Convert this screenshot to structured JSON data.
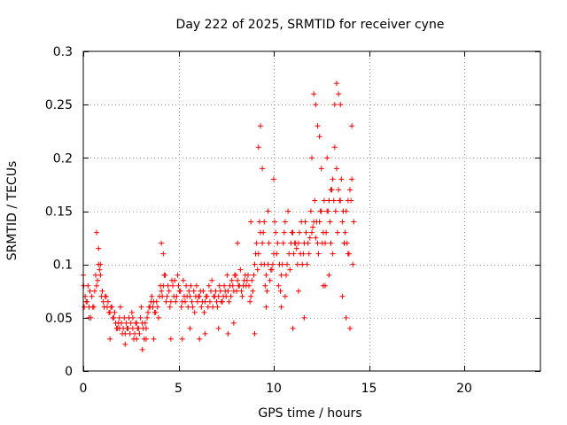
{
  "chart_data": {
    "type": "scatter",
    "title": "Day 222 of 2025, SRMTID for receiver cyne",
    "xlabel": "GPS time / hours",
    "ylabel": "SRMTID / TECUs",
    "xlim": [
      0,
      24
    ],
    "ylim": [
      0,
      0.3
    ],
    "xticks": [
      0,
      5,
      10,
      15,
      20
    ],
    "xtick_labels": [
      "0",
      "5",
      "10",
      "15",
      "20"
    ],
    "yticks": [
      0,
      0.05,
      0.1,
      0.15,
      0.2,
      0.25,
      0.3
    ],
    "ytick_labels": [
      "0",
      "0.05",
      "0.1",
      "0.15",
      "0.2",
      "0.25",
      "0.3"
    ],
    "grid": true,
    "marker": "+",
    "colors": {
      "points": "#ff0000",
      "axes": "#000000",
      "grid": "#a0a0a0"
    },
    "series": [
      {
        "name": "SRMTID",
        "x": [
          0.0,
          0.1,
          0.2,
          0.3,
          0.4,
          0.5,
          0.6,
          0.7,
          0.8,
          0.9,
          1.0,
          1.1,
          1.2,
          1.3,
          1.4,
          1.5,
          1.6,
          1.7,
          1.8,
          1.9,
          2.0,
          2.1,
          2.2,
          2.3,
          2.4,
          2.5,
          2.6,
          2.7,
          2.8,
          2.9,
          3.0,
          3.1,
          3.2,
          3.3,
          3.4,
          3.5,
          3.6,
          3.7,
          3.8,
          3.9,
          4.0,
          4.1,
          4.2,
          4.3,
          4.4,
          4.5,
          4.6,
          4.7,
          4.8,
          4.9,
          5.0,
          5.1,
          5.2,
          5.3,
          5.4,
          5.5,
          5.6,
          5.7,
          5.8,
          5.9,
          6.0,
          6.1,
          6.2,
          6.3,
          6.4,
          6.5,
          6.6,
          6.7,
          6.8,
          6.9,
          7.0,
          7.1,
          7.2,
          7.3,
          7.4,
          7.5,
          7.6,
          7.7,
          7.8,
          7.9,
          8.0,
          8.1,
          8.2,
          8.3,
          8.4,
          8.5,
          8.6,
          8.7,
          8.8,
          8.9,
          9.0,
          9.1,
          9.2,
          9.3,
          9.4,
          9.5,
          9.6,
          9.7,
          9.8,
          9.9,
          10.0,
          10.1,
          10.2,
          10.3,
          10.4,
          10.5,
          10.6,
          10.7,
          10.8,
          10.9,
          11.0,
          11.1,
          11.2,
          11.3,
          11.4,
          11.5,
          11.6,
          11.7,
          11.8,
          11.9,
          12.0,
          12.1,
          12.2,
          12.3,
          12.4,
          12.5,
          12.6,
          12.7,
          12.8,
          12.9,
          13.0,
          13.1,
          13.2,
          13.3,
          13.4,
          13.5,
          13.6,
          13.7,
          13.8,
          13.9,
          14.0,
          14.1,
          14.2,
          0.05,
          0.15,
          0.25,
          0.35,
          0.45,
          0.55,
          0.65,
          0.75,
          0.85,
          0.95,
          1.05,
          1.15,
          1.25,
          1.35,
          1.45,
          1.55,
          1.65,
          1.75,
          1.85,
          1.95,
          2.05,
          2.15,
          2.25,
          2.35,
          2.45,
          2.55,
          2.65,
          2.75,
          2.85,
          2.95,
          3.05,
          3.15,
          3.25,
          3.35,
          3.45,
          3.55,
          3.65,
          3.75,
          3.85,
          3.95,
          4.05,
          4.15,
          4.25,
          4.35,
          4.45,
          4.55,
          4.65,
          4.75,
          4.85,
          4.95,
          5.05,
          5.15,
          5.25,
          5.35,
          5.45,
          5.55,
          5.65,
          5.75,
          5.85,
          5.95,
          6.05,
          6.15,
          6.25,
          6.35,
          6.45,
          6.55,
          6.65,
          6.75,
          6.85,
          6.95,
          7.05,
          7.15,
          7.25,
          7.35,
          7.45,
          7.55,
          7.65,
          7.75,
          7.85,
          7.95,
          8.05,
          8.15,
          8.25,
          8.35,
          8.45,
          8.55,
          8.65,
          8.75,
          8.85,
          8.95,
          9.05,
          9.15,
          9.25,
          9.35,
          9.45,
          9.55,
          9.65,
          9.75,
          9.85,
          9.95,
          10.05,
          10.15,
          10.25,
          10.35,
          10.45,
          10.55,
          10.65,
          10.75,
          10.85,
          10.95,
          11.05,
          11.15,
          11.25,
          11.35,
          11.45,
          11.55,
          11.65,
          11.75,
          11.85,
          11.95,
          12.05,
          12.15,
          12.25,
          12.35,
          12.45,
          12.55,
          12.65,
          12.75,
          12.85,
          12.95,
          13.05,
          13.15,
          13.25,
          13.35,
          13.45,
          13.55,
          13.65,
          13.75,
          13.85,
          13.95,
          14.05,
          14.15,
          0.02,
          0.3,
          0.7,
          0.8,
          0.9,
          1.4,
          1.9,
          2.2,
          2.6,
          2.8,
          3.1,
          3.3,
          3.7,
          4.1,
          4.2,
          4.6,
          5.2,
          5.6,
          6.1,
          6.4,
          7.1,
          7.6,
          7.9,
          8.1,
          8.8,
          9.0,
          9.2,
          9.3,
          9.4,
          9.5,
          9.6,
          9.7,
          10.0,
          10.4,
          10.6,
          11.0,
          11.3,
          11.6,
          12.0,
          12.1,
          12.2,
          12.3,
          12.4,
          12.5,
          12.6,
          12.7,
          12.8,
          12.9,
          13.0,
          13.1,
          13.2,
          13.3,
          13.4,
          13.5,
          13.6,
          13.7,
          13.8,
          13.9,
          14.0,
          14.1
        ],
        "y": [
          0.09,
          0.07,
          0.065,
          0.06,
          0.05,
          0.06,
          0.075,
          0.08,
          0.1,
          0.09,
          0.075,
          0.06,
          0.07,
          0.065,
          0.055,
          0.06,
          0.05,
          0.045,
          0.04,
          0.05,
          0.045,
          0.04,
          0.035,
          0.04,
          0.05,
          0.045,
          0.04,
          0.035,
          0.045,
          0.04,
          0.05,
          0.045,
          0.03,
          0.04,
          0.055,
          0.06,
          0.07,
          0.065,
          0.055,
          0.06,
          0.07,
          0.075,
          0.08,
          0.09,
          0.07,
          0.075,
          0.065,
          0.08,
          0.085,
          0.07,
          0.08,
          0.075,
          0.065,
          0.07,
          0.08,
          0.06,
          0.07,
          0.065,
          0.075,
          0.07,
          0.065,
          0.07,
          0.06,
          0.075,
          0.065,
          0.07,
          0.08,
          0.075,
          0.06,
          0.07,
          0.065,
          0.07,
          0.075,
          0.065,
          0.08,
          0.07,
          0.075,
          0.08,
          0.085,
          0.075,
          0.09,
          0.085,
          0.08,
          0.075,
          0.08,
          0.09,
          0.085,
          0.08,
          0.07,
          0.075,
          0.1,
          0.12,
          0.11,
          0.13,
          0.12,
          0.1,
          0.09,
          0.1,
          0.085,
          0.095,
          0.11,
          0.13,
          0.12,
          0.1,
          0.09,
          0.12,
          0.14,
          0.1,
          0.11,
          0.12,
          0.13,
          0.12,
          0.115,
          0.12,
          0.11,
          0.1,
          0.12,
          0.13,
          0.12,
          0.125,
          0.13,
          0.14,
          0.125,
          0.12,
          0.14,
          0.15,
          0.13,
          0.12,
          0.15,
          0.16,
          0.17,
          0.18,
          0.21,
          0.19,
          0.17,
          0.16,
          0.14,
          0.12,
          0.15,
          0.16,
          0.17,
          0.18,
          0.14,
          0.06,
          0.065,
          0.08,
          0.075,
          0.07,
          0.06,
          0.09,
          0.085,
          0.095,
          0.07,
          0.065,
          0.07,
          0.06,
          0.055,
          0.06,
          0.05,
          0.055,
          0.04,
          0.045,
          0.06,
          0.035,
          0.05,
          0.045,
          0.04,
          0.035,
          0.055,
          0.03,
          0.045,
          0.04,
          0.035,
          0.06,
          0.04,
          0.045,
          0.05,
          0.06,
          0.065,
          0.06,
          0.055,
          0.065,
          0.05,
          0.08,
          0.07,
          0.09,
          0.065,
          0.08,
          0.06,
          0.085,
          0.07,
          0.065,
          0.09,
          0.075,
          0.06,
          0.085,
          0.065,
          0.07,
          0.075,
          0.08,
          0.06,
          0.055,
          0.08,
          0.07,
          0.075,
          0.065,
          0.055,
          0.07,
          0.06,
          0.065,
          0.085,
          0.07,
          0.075,
          0.06,
          0.08,
          0.065,
          0.07,
          0.075,
          0.09,
          0.065,
          0.07,
          0.08,
          0.09,
          0.075,
          0.08,
          0.095,
          0.07,
          0.085,
          0.08,
          0.09,
          0.065,
          0.085,
          0.09,
          0.11,
          0.095,
          0.14,
          0.1,
          0.13,
          0.08,
          0.075,
          0.12,
          0.095,
          0.1,
          0.14,
          0.11,
          0.08,
          0.075,
          0.1,
          0.13,
          0.09,
          0.15,
          0.095,
          0.13,
          0.11,
          0.12,
          0.1,
          0.13,
          0.14,
          0.11,
          0.14,
          0.1,
          0.11,
          0.15,
          0.135,
          0.16,
          0.14,
          0.11,
          0.15,
          0.12,
          0.16,
          0.13,
          0.15,
          0.14,
          0.17,
          0.16,
          0.15,
          0.13,
          0.16,
          0.18,
          0.15,
          0.13,
          0.12,
          0.11,
          0.16,
          0.1,
          0.08,
          0.05,
          0.13,
          0.115,
          0.1,
          0.03,
          0.04,
          0.025,
          0.05,
          0.03,
          0.02,
          0.03,
          0.03,
          0.12,
          0.11,
          0.03,
          0.03,
          0.04,
          0.03,
          0.035,
          0.04,
          0.035,
          0.045,
          0.12,
          0.14,
          0.035,
          0.21,
          0.23,
          0.19,
          0.14,
          0.06,
          0.15,
          0.18,
          0.06,
          0.07,
          0.04,
          0.075,
          0.05,
          0.2,
          0.26,
          0.25,
          0.23,
          0.22,
          0.19,
          0.08,
          0.08,
          0.2,
          0.09,
          0.12,
          0.11,
          0.25,
          0.27,
          0.26,
          0.25,
          0.07,
          0.12,
          0.05,
          0.11,
          0.04,
          0.23
        ]
      }
    ]
  }
}
